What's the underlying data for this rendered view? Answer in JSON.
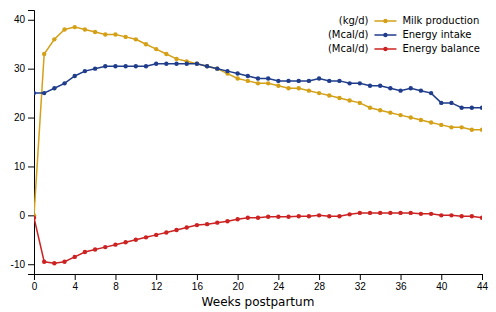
{
  "chart_data": {
    "type": "line",
    "xlabel": "Weeks postpartum",
    "x": [
      0,
      1,
      2,
      3,
      4,
      5,
      6,
      7,
      8,
      9,
      10,
      11,
      12,
      13,
      14,
      15,
      16,
      17,
      18,
      19,
      20,
      21,
      22,
      23,
      24,
      25,
      26,
      27,
      28,
      29,
      30,
      31,
      32,
      33,
      34,
      35,
      36,
      37,
      38,
      39,
      40,
      41,
      42,
      43,
      44
    ],
    "series": [
      {
        "name": "Milk production",
        "color": "#D4A017",
        "values": [
          0,
          33,
          36,
          38,
          38.5,
          38,
          37.5,
          37,
          37,
          36.5,
          36,
          35,
          34,
          33,
          32,
          31.5,
          31,
          30.5,
          30,
          29,
          28,
          27.5,
          27,
          27,
          26.5,
          26,
          26,
          25.5,
          25,
          24.5,
          24,
          23.5,
          23,
          22,
          21.5,
          21,
          20.5,
          20,
          19.5,
          19,
          18.5,
          18,
          18,
          17.5,
          17.5
        ]
      },
      {
        "name": "Energy intake",
        "color": "#1F3D8B",
        "values": [
          25,
          25,
          26,
          27,
          28.5,
          29.5,
          30,
          30.5,
          30.5,
          30.5,
          30.5,
          30.5,
          31,
          31,
          31,
          31,
          31,
          30.5,
          30,
          29.5,
          29,
          28.5,
          28,
          28,
          27.5,
          27.5,
          27.5,
          27.5,
          28,
          27.5,
          27.5,
          27,
          27,
          26.5,
          26.5,
          26,
          25.5,
          26,
          25.5,
          25,
          23,
          23,
          22,
          22,
          22
        ]
      },
      {
        "name": "Energy balance",
        "color": "#CC2222",
        "values": [
          -0.5,
          -9.5,
          -9.8,
          -9.5,
          -8.5,
          -7.5,
          -7,
          -6.5,
          -6,
          -5.5,
          -5,
          -4.5,
          -4,
          -3.5,
          -3,
          -2.5,
          -2,
          -1.8,
          -1.5,
          -1.2,
          -0.8,
          -0.5,
          -0.5,
          -0.3,
          -0.3,
          -0.3,
          -0.2,
          -0.2,
          0,
          -0.2,
          -0.2,
          0.2,
          0.5,
          0.5,
          0.5,
          0.5,
          0.5,
          0.5,
          0.3,
          0.3,
          0,
          0,
          -0.2,
          -0.2,
          -0.5
        ]
      }
    ],
    "annotations": [
      "(kg/d)",
      "(Mcal/d)",
      "(Mcal/d)"
    ],
    "xlim": [
      0,
      44
    ],
    "ylim": [
      -12,
      42
    ],
    "xticks": [
      0,
      4,
      8,
      12,
      16,
      20,
      24,
      28,
      32,
      36,
      40,
      44
    ],
    "yticks": [
      -10,
      0,
      10,
      20,
      30,
      40
    ],
    "marker": "circle",
    "line_style": "solid",
    "legend": "upper right",
    "grid": false
  }
}
